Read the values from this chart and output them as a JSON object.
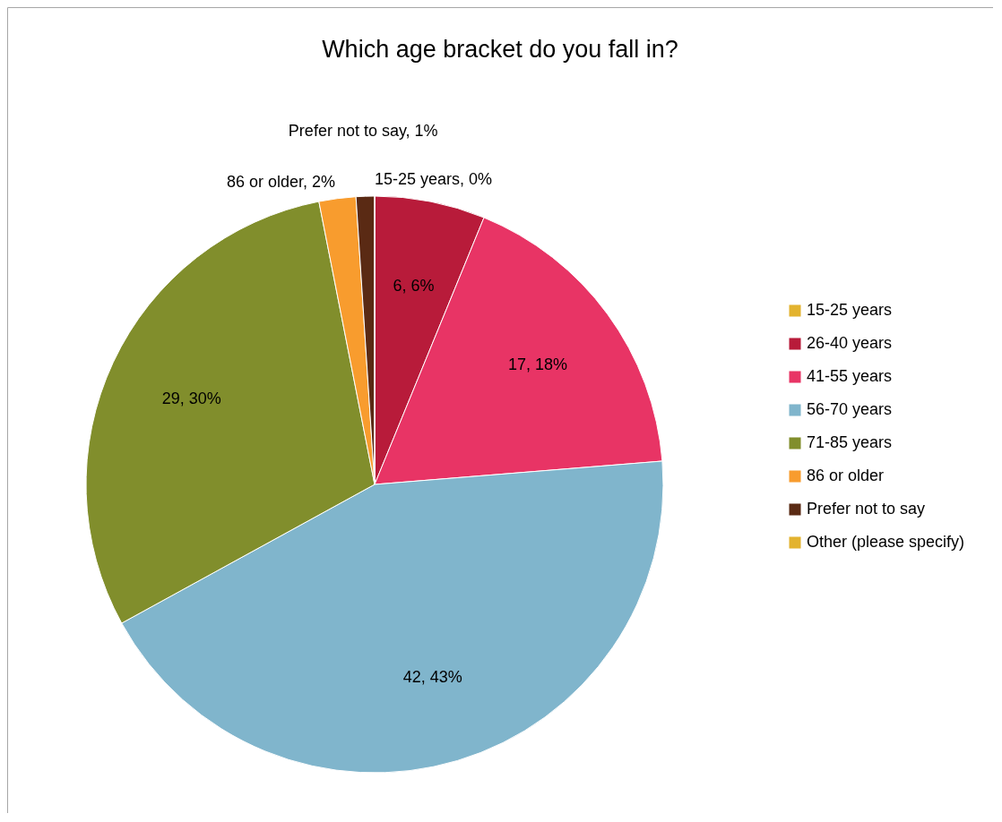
{
  "chart_data": {
    "type": "pie",
    "title": "Which age bracket do you fall in?",
    "categories": [
      "15-25 years",
      "26-40 years",
      "41-55 years",
      "56-70 years",
      "71-85 years",
      "86 or older",
      "Prefer not to say",
      "Other (please specify)"
    ],
    "values": [
      0,
      6,
      17,
      42,
      29,
      2,
      1,
      0
    ],
    "colors": [
      "#e3b32f",
      "#b81b3a",
      "#e83465",
      "#80b5cc",
      "#818e2c",
      "#f89c2e",
      "#5a2a14",
      "#e3b32f"
    ],
    "value_labels": [
      "15-25 years, 0%",
      "6, 6%",
      "17, 18%",
      "42, 43%",
      "29, 30%",
      "86 or older, 2%",
      "Prefer not to say, 1%",
      null
    ],
    "legend": "right"
  }
}
